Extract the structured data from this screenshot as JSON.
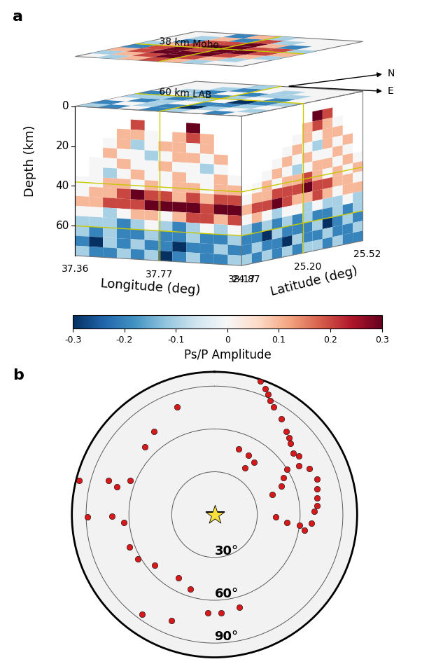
{
  "chart_data": [
    {
      "type": "heatmap",
      "label": "a",
      "zlabel": "Depth (km)",
      "xlabel": "Longitude (deg)",
      "ylabel": "Latitude (deg)",
      "zlim": [
        0,
        75
      ],
      "zticks": [
        0,
        20,
        40,
        60
      ],
      "xlim": [
        37.36,
        38.17
      ],
      "xticks": [
        37.36,
        37.77,
        38.17
      ],
      "ylim": [
        24.87,
        25.52
      ],
      "yticks": [
        24.87,
        {
          "value": 25.2,
          "label": "25.20"
        },
        25.52
      ],
      "directions": [
        "N",
        "E"
      ],
      "colorbar": {
        "label": "Ps/P Amplitude",
        "range": [
          -0.3,
          0.3
        ],
        "ticks": [
          -0.3,
          -0.2,
          -0.1,
          0,
          0.1,
          0.2,
          0.3
        ]
      },
      "depth_bins": [
        0,
        5,
        10,
        15,
        20,
        25,
        30,
        35,
        40,
        45,
        50,
        55,
        60,
        65,
        70,
        75
      ],
      "front_face": [
        [
          null,
          null,
          null,
          null,
          null,
          null,
          null,
          null,
          null,
          null,
          null,
          null
        ],
        [
          null,
          null,
          null,
          null,
          0.2,
          null,
          null,
          null,
          0.3,
          null,
          null,
          null
        ],
        [
          null,
          null,
          null,
          0.1,
          0.1,
          0.0,
          null,
          0.1,
          0.2,
          0.1,
          null,
          null
        ],
        [
          null,
          null,
          0.0,
          0.1,
          -0.1,
          0.0,
          0.1,
          0.1,
          0.0,
          0.1,
          null,
          null
        ],
        [
          null,
          null,
          0.1,
          0.0,
          0.0,
          -0.1,
          0.0,
          0.1,
          0.1,
          0.0,
          0.1,
          null
        ],
        [
          null,
          0.0,
          0.0,
          0.1,
          0.0,
          0.0,
          0.1,
          0.0,
          0.0,
          -0.1,
          0.0,
          null
        ],
        [
          null,
          0.0,
          -0.1,
          0.0,
          0.1,
          0.0,
          0.0,
          0.1,
          0.0,
          0.0,
          0.1,
          0.0
        ],
        [
          0.0,
          0.0,
          0.1,
          0.1,
          0.0,
          0.1,
          0.0,
          0.1,
          0.1,
          0.0,
          0.1,
          0.1
        ],
        [
          0.0,
          0.1,
          0.1,
          0.2,
          0.3,
          0.2,
          0.2,
          0.1,
          0.2,
          0.1,
          0.2,
          0.2
        ],
        [
          0.1,
          0.1,
          0.2,
          0.2,
          0.2,
          0.3,
          0.3,
          0.3,
          0.3,
          0.2,
          0.3,
          0.3
        ],
        [
          0.0,
          0.0,
          -0.1,
          0.0,
          0.1,
          0.1,
          0.0,
          0.1,
          0.2,
          0.2,
          0.1,
          0.2
        ],
        [
          -0.1,
          -0.1,
          -0.1,
          -0.2,
          -0.1,
          0.0,
          -0.1,
          -0.2,
          -0.1,
          0.0,
          -0.1,
          0.0
        ],
        [
          -0.1,
          -0.2,
          -0.1,
          -0.2,
          -0.2,
          -0.1,
          -0.2,
          -0.2,
          -0.1,
          -0.2,
          -0.2,
          -0.1
        ],
        [
          -0.2,
          -0.3,
          -0.1,
          -0.2,
          -0.1,
          -0.2,
          -0.2,
          -0.3,
          -0.2,
          -0.2,
          -0.1,
          -0.2
        ],
        [
          -0.1,
          -0.2,
          -0.2,
          -0.1,
          -0.2,
          -0.1,
          -0.3,
          -0.2,
          -0.1,
          -0.2,
          -0.2,
          -0.1
        ]
      ],
      "side_face": [
        [
          null,
          null,
          null,
          null,
          null,
          null,
          null,
          null,
          null,
          null,
          null,
          null
        ],
        [
          null,
          null,
          null,
          null,
          null,
          null,
          null,
          0.3,
          0.2,
          null,
          null,
          null
        ],
        [
          null,
          null,
          null,
          null,
          null,
          null,
          0.1,
          0.2,
          0.1,
          0.0,
          null,
          null
        ],
        [
          null,
          null,
          null,
          null,
          null,
          0.0,
          0.1,
          0.0,
          0.1,
          0.1,
          null,
          null
        ],
        [
          null,
          null,
          null,
          null,
          0.0,
          0.1,
          0.0,
          -0.1,
          0.1,
          0.0,
          0.1,
          null
        ],
        [
          null,
          null,
          null,
          0.0,
          0.1,
          0.0,
          0.1,
          0.0,
          0.0,
          0.1,
          0.0,
          null
        ],
        [
          null,
          null,
          0.0,
          0.1,
          0.0,
          -0.1,
          0.0,
          0.1,
          0.1,
          0.0,
          0.1,
          0.0
        ],
        [
          null,
          0.0,
          0.1,
          0.0,
          0.1,
          0.1,
          0.2,
          0.1,
          0.0,
          0.1,
          0.0,
          0.1
        ],
        [
          0.0,
          0.1,
          0.1,
          0.2,
          0.2,
          0.2,
          0.3,
          0.2,
          0.2,
          0.1,
          0.1,
          0.0
        ],
        [
          0.1,
          0.2,
          0.2,
          0.3,
          0.2,
          0.1,
          0.1,
          0.2,
          0.1,
          0.0,
          0.1,
          0.1
        ],
        [
          0.0,
          0.1,
          0.0,
          -0.1,
          0.0,
          0.0,
          -0.1,
          0.0,
          -0.1,
          -0.1,
          0.0,
          -0.1
        ],
        [
          -0.1,
          -0.2,
          -0.1,
          -0.2,
          -0.1,
          -0.2,
          -0.1,
          -0.2,
          -0.2,
          -0.1,
          -0.2,
          -0.1
        ],
        [
          -0.2,
          -0.2,
          -0.3,
          -0.1,
          -0.2,
          -0.2,
          -0.2,
          -0.1,
          -0.3,
          -0.2,
          -0.1,
          -0.2
        ],
        [
          -0.2,
          -0.1,
          -0.2,
          -0.2,
          -0.3,
          -0.1,
          -0.2,
          -0.2,
          -0.1,
          -0.2,
          -0.2,
          -0.1
        ],
        [
          -0.1,
          -0.2,
          -0.1,
          -0.2,
          -0.1,
          -0.2,
          -0.1,
          -0.1,
          -0.2,
          -0.1,
          -0.2,
          -0.2
        ]
      ],
      "slices": [
        {
          "label": "38 km Moho",
          "depth": 38,
          "values": [
            [
              null,
              -0.1,
              0.1,
              0.2,
              0.1,
              -0.1,
              null,
              null
            ],
            [
              -0.1,
              0.1,
              0.2,
              0.3,
              0.2,
              0.1,
              -0.1,
              null
            ],
            [
              0.1,
              0.2,
              0.3,
              0.3,
              0.3,
              0.2,
              0.1,
              -0.1
            ],
            [
              -0.2,
              0.2,
              0.3,
              0.2,
              0.3,
              0.3,
              0.2,
              0.1
            ],
            [
              -0.1,
              0.1,
              0.2,
              0.3,
              0.3,
              0.2,
              0.2,
              -0.1
            ],
            [
              null,
              -0.2,
              0.2,
              0.2,
              0.3,
              0.1,
              -0.2,
              null
            ],
            [
              null,
              -0.1,
              0.1,
              -0.2,
              0.2,
              -0.1,
              null,
              null
            ],
            [
              null,
              null,
              -0.2,
              0.1,
              -0.1,
              null,
              null,
              null
            ]
          ]
        },
        {
          "label": "60 km LAB",
          "depth": 60,
          "values": [
            [
              -0.1,
              -0.2,
              0.0,
              -0.2,
              -0.1,
              0.0,
              -0.2,
              null
            ],
            [
              -0.2,
              0.0,
              -0.1,
              -0.2,
              -0.3,
              -0.1,
              0.0,
              -0.1
            ],
            [
              0.0,
              -0.2,
              -0.1,
              0.0,
              -0.2,
              -0.2,
              -0.1,
              0.0
            ],
            [
              -0.1,
              -0.1,
              -0.2,
              -0.1,
              0.0,
              -0.3,
              -0.2,
              -0.1
            ],
            [
              -0.2,
              0.0,
              -0.1,
              -0.2,
              -0.1,
              0.0,
              -0.2,
              0.0
            ],
            [
              null,
              -0.1,
              -0.2,
              0.0,
              -0.2,
              -0.1,
              -0.1,
              null
            ],
            [
              null,
              null,
              -0.1,
              -0.2,
              0.0,
              -0.1,
              null,
              null
            ],
            [
              null,
              null,
              null,
              -0.1,
              null,
              null,
              null,
              null
            ]
          ]
        }
      ]
    },
    {
      "type": "map",
      "label": "b",
      "rlim": [
        0,
        100
      ],
      "rticks": [
        {
          "value": 30,
          "label": "30°"
        },
        {
          "value": 60,
          "label": "60°"
        },
        {
          "value": 90,
          "label": "90°"
        }
      ],
      "station": {
        "marker": "star",
        "color": "#f7e03c"
      },
      "events": {
        "marker": "circle",
        "color": "#d7191c",
        "azimuth": [
          19,
          24,
          29,
          35,
          41,
          47,
          55,
          64,
          71,
          81,
          88,
          95,
          97,
          96,
          92,
          71,
          67,
          20,
          30,
          37,
          33,
          341,
          324,
          314,
          292,
          286,
          288,
          269,
          265,
          249,
          240,
          230,
          210,
          198,
          184,
          176,
          165,
          202,
          216,
          269,
          284,
          22,
          26,
          44,
          52,
          60,
          76,
          85,
          100,
          58,
          62
        ],
        "distance": [
          99,
          92,
          86,
          82,
          77,
          73,
          72,
          74,
          76,
          73,
          70,
          68,
          60,
          51,
          43,
          43,
          51,
          49,
          48,
          46,
          39,
          80,
          72,
          68,
          64,
          71,
          78,
          72,
          64,
          64,
          62,
          55,
          51,
          55,
          69,
          69,
          67,
          80,
          86,
          89,
          98,
          95,
          89,
          75,
          70,
          68,
          74,
          72,
          64,
          60,
          55
        ]
      }
    }
  ]
}
